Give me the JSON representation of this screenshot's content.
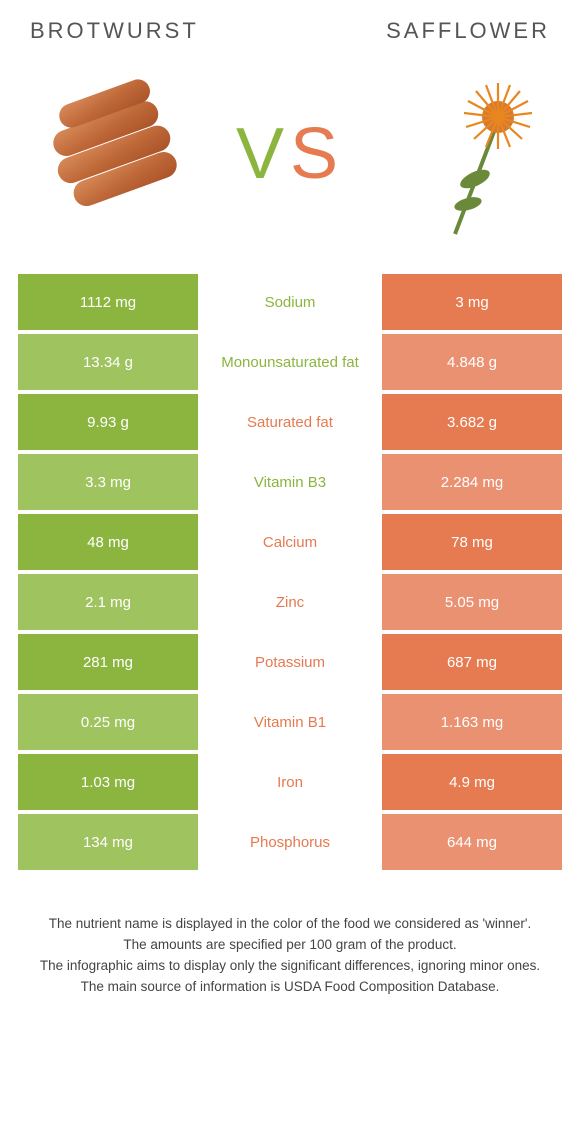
{
  "colors": {
    "left": "#8bb53f",
    "right": "#e67a51",
    "leftLight": "#9fc35e",
    "rightLight": "#ea9172"
  },
  "titles": {
    "left": "Brotwurst",
    "right": "Safflower"
  },
  "vs": {
    "v": "V",
    "s": "S"
  },
  "rows": [
    {
      "left": "1112 mg",
      "name": "Sodium",
      "right": "3 mg",
      "winner": "left"
    },
    {
      "left": "13.34 g",
      "name": "Monounsaturated fat",
      "right": "4.848 g",
      "winner": "left"
    },
    {
      "left": "9.93 g",
      "name": "Saturated fat",
      "right": "3.682 g",
      "winner": "right"
    },
    {
      "left": "3.3 mg",
      "name": "Vitamin B3",
      "right": "2.284 mg",
      "winner": "left"
    },
    {
      "left": "48 mg",
      "name": "Calcium",
      "right": "78 mg",
      "winner": "right"
    },
    {
      "left": "2.1 mg",
      "name": "Zinc",
      "right": "5.05 mg",
      "winner": "right"
    },
    {
      "left": "281 mg",
      "name": "Potassium",
      "right": "687 mg",
      "winner": "right"
    },
    {
      "left": "0.25 mg",
      "name": "Vitamin B1",
      "right": "1.163 mg",
      "winner": "right"
    },
    {
      "left": "1.03 mg",
      "name": "Iron",
      "right": "4.9 mg",
      "winner": "right"
    },
    {
      "left": "134 mg",
      "name": "Phosphorus",
      "right": "644 mg",
      "winner": "right"
    }
  ],
  "footer": {
    "l1": "The nutrient name is displayed in the color of the food we considered as 'winner'.",
    "l2": "The amounts are specified per 100 gram of the product.",
    "l3": "The infographic aims to display only the significant differences, ignoring minor ones.",
    "l4": "The main source of information is USDA Food Composition Database."
  }
}
